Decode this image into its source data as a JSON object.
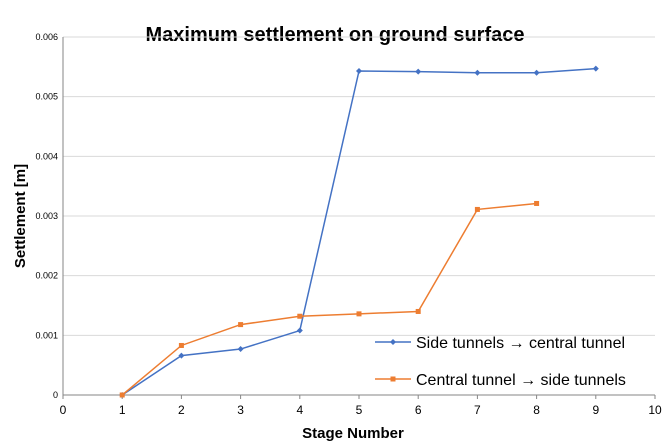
{
  "chart_data": {
    "type": "line",
    "title": "Maximum settlement on ground surface",
    "xlabel": "Stage Number",
    "ylabel": "Settlement [m]",
    "xlim": [
      0,
      10
    ],
    "ylim": [
      0,
      0.006
    ],
    "x_ticks": [
      "0",
      "1",
      "2",
      "3",
      "4",
      "5",
      "6",
      "7",
      "8",
      "9",
      "10"
    ],
    "y_ticks": [
      "0",
      "0.001",
      "0.002",
      "0.003",
      "0.004",
      "0.005",
      "0.006"
    ],
    "grid": "horizontal",
    "legend_position": "bottom-right",
    "series": [
      {
        "name": "Side tunnels → central tunnel",
        "color": "#4472c4",
        "marker": "diamond",
        "x": [
          1,
          2,
          3,
          4,
          5,
          6,
          7,
          8,
          9
        ],
        "y": [
          0,
          0.00066,
          0.00077,
          0.00108,
          0.00543,
          0.00542,
          0.0054,
          0.0054,
          0.00547
        ]
      },
      {
        "name": "Central tunnel → side tunnels",
        "color": "#ed7d31",
        "marker": "square",
        "x": [
          1,
          2,
          3,
          4,
          5,
          6,
          7,
          8
        ],
        "y": [
          0,
          0.00083,
          0.00118,
          0.00132,
          0.00136,
          0.0014,
          0.00311,
          0.00321
        ]
      }
    ]
  }
}
